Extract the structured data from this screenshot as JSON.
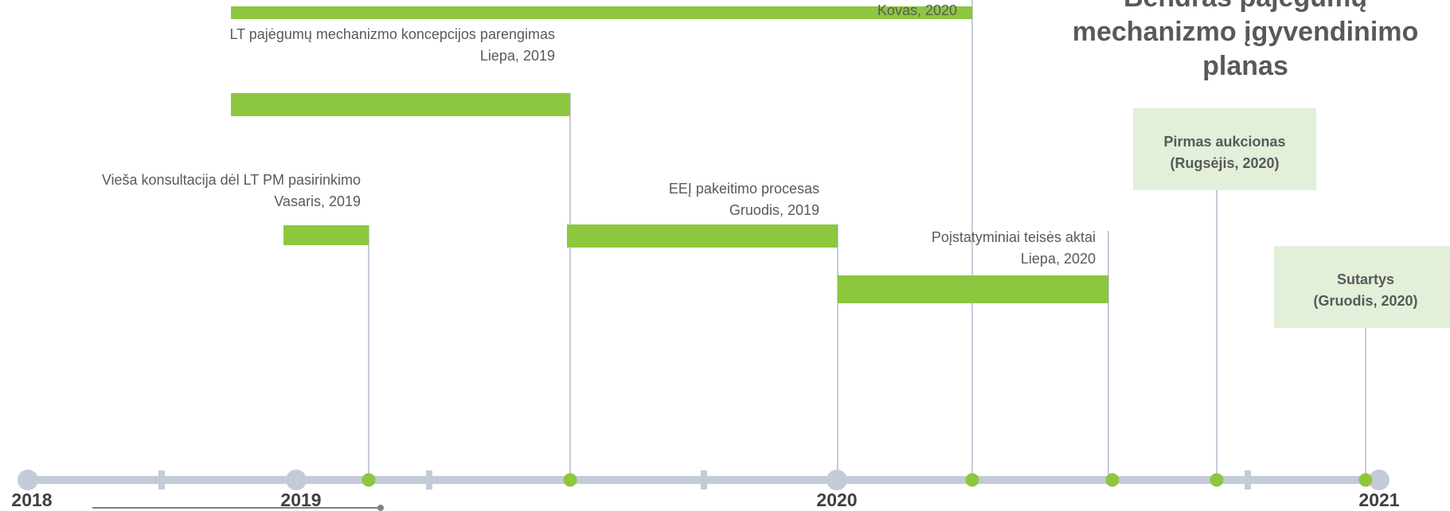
{
  "title_lines": [
    "Bendras pajėgumų",
    "mechanizmo įgyvendinimo",
    "planas"
  ],
  "years": [
    "2018",
    "2019",
    "2020",
    "2021"
  ],
  "tasks": [
    {
      "date": "Kovas, 2020"
    },
    {
      "label": "LT pajėgumų mechanizmo koncepcijos parengimas",
      "date": "Liepa, 2019"
    },
    {
      "label": "Vieša konsultacija dėl LT PM pasirinkimo",
      "date": "Vasaris, 2019"
    },
    {
      "label": "EEĮ pakeitimo procesas",
      "date": "Gruodis, 2019"
    },
    {
      "label": "Poįstatyminiai teisės aktai",
      "date": "Liepa, 2020"
    }
  ],
  "milestones": [
    {
      "label": "Pirmas aukcionas",
      "date": "(Rugsėjis, 2020)"
    },
    {
      "label": "Sutartys",
      "date": "(Gruodis, 2020)"
    }
  ]
}
